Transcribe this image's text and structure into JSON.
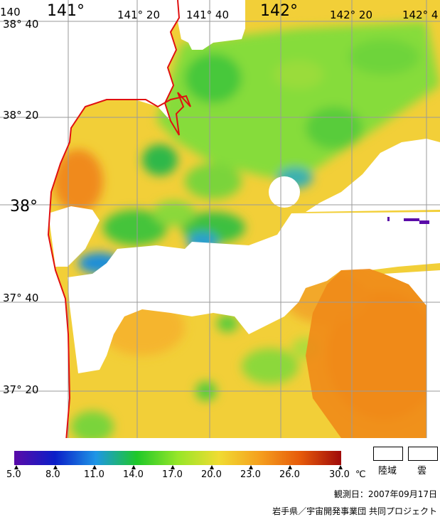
{
  "map": {
    "longitude_labels": [
      "140",
      "141°",
      "141° 20",
      "141° 40",
      "142°",
      "142° 20",
      "142° 4"
    ],
    "latitude_labels": [
      "38° 40",
      "38° 20",
      "38°",
      "37° 40",
      "37° 20"
    ],
    "colors": {
      "coast": "#e01010",
      "grid": "#9a9a9a",
      "cloud_land": "#ffffff"
    }
  },
  "legend": {
    "colorbar_ticks": [
      "5.0",
      "8.0",
      "11.0",
      "14.0",
      "17.0",
      "20.0",
      "23.0",
      "26.0",
      "30.0"
    ],
    "unit": "℃",
    "colorbar_range": [
      5.0,
      30.0
    ],
    "colorbar_colors": [
      "#5a0aa8",
      "#0a1ec8",
      "#1e96e6",
      "#1ec828",
      "#96e628",
      "#f0dc32",
      "#f5a01e",
      "#e65a0a",
      "#a00a0a"
    ],
    "land_label": "陸域",
    "cloud_label": "雲"
  },
  "footer": {
    "observation_date": "観測日：2007年09月17日",
    "credit": "岩手県／宇宙開発事業団 共同プロジェクト"
  }
}
